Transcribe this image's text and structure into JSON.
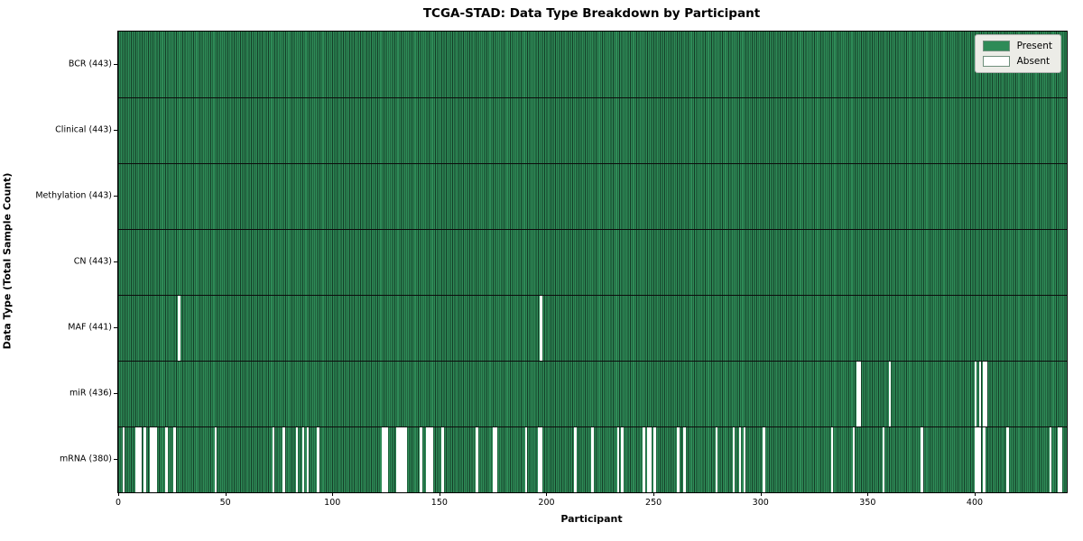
{
  "title": "TCGA-STAD: Data Type Breakdown by Participant",
  "xlabel": "Participant",
  "ylabel": "Data Type (Total Sample Count)",
  "legend": {
    "present_label": "Present",
    "absent_label": "Absent"
  },
  "colors": {
    "present": "#2e8b57",
    "bar_edge": "#143d27",
    "absent": "#ffffff",
    "row_divider": "#0c0c0c",
    "legend_bg": "#ecece7"
  },
  "chart_data": {
    "type": "heatmap",
    "title": "TCGA-STAD: Data Type Breakdown by Participant",
    "xlabel": "Participant",
    "ylabel": "Data Type (Total Sample Count)",
    "x_ticks": [
      0,
      50,
      100,
      150,
      200,
      250,
      300,
      350,
      400
    ],
    "x_range": [
      0,
      443
    ],
    "total_participants": 443,
    "legend_entries": [
      "Present",
      "Absent"
    ],
    "legend_position": "upper right",
    "grid": false,
    "rows": [
      {
        "label": "BCR (443)",
        "data_type": "BCR",
        "present_count": 443,
        "absent_participants": []
      },
      {
        "label": "Clinical (443)",
        "data_type": "Clinical",
        "present_count": 443,
        "absent_participants": []
      },
      {
        "label": "Methylation (443)",
        "data_type": "Methylation",
        "present_count": 443,
        "absent_participants": []
      },
      {
        "label": "CN (443)",
        "data_type": "CN",
        "present_count": 443,
        "absent_participants": []
      },
      {
        "label": "MAF (441)",
        "data_type": "MAF",
        "present_count": 441,
        "absent_participants": [
          28,
          197
        ]
      },
      {
        "label": "miR (436)",
        "data_type": "miR",
        "present_count": 436,
        "absent_participants": [
          345,
          346,
          360,
          400,
          402,
          404,
          405
        ]
      },
      {
        "label": "mRNA (380)",
        "data_type": "mRNA",
        "present_count": 380,
        "absent_participants": [
          2,
          8,
          9,
          10,
          12,
          15,
          16,
          17,
          22,
          26,
          45,
          72,
          77,
          83,
          86,
          88,
          93,
          123,
          124,
          125,
          130,
          131,
          132,
          133,
          134,
          141,
          144,
          145,
          146,
          151,
          167,
          175,
          176,
          190,
          196,
          197,
          213,
          221,
          233,
          235,
          245,
          247,
          248,
          250,
          261,
          264,
          279,
          287,
          290,
          292,
          301,
          333,
          343,
          357,
          375,
          400,
          401,
          402,
          404,
          415,
          435,
          439,
          440
        ]
      }
    ]
  }
}
